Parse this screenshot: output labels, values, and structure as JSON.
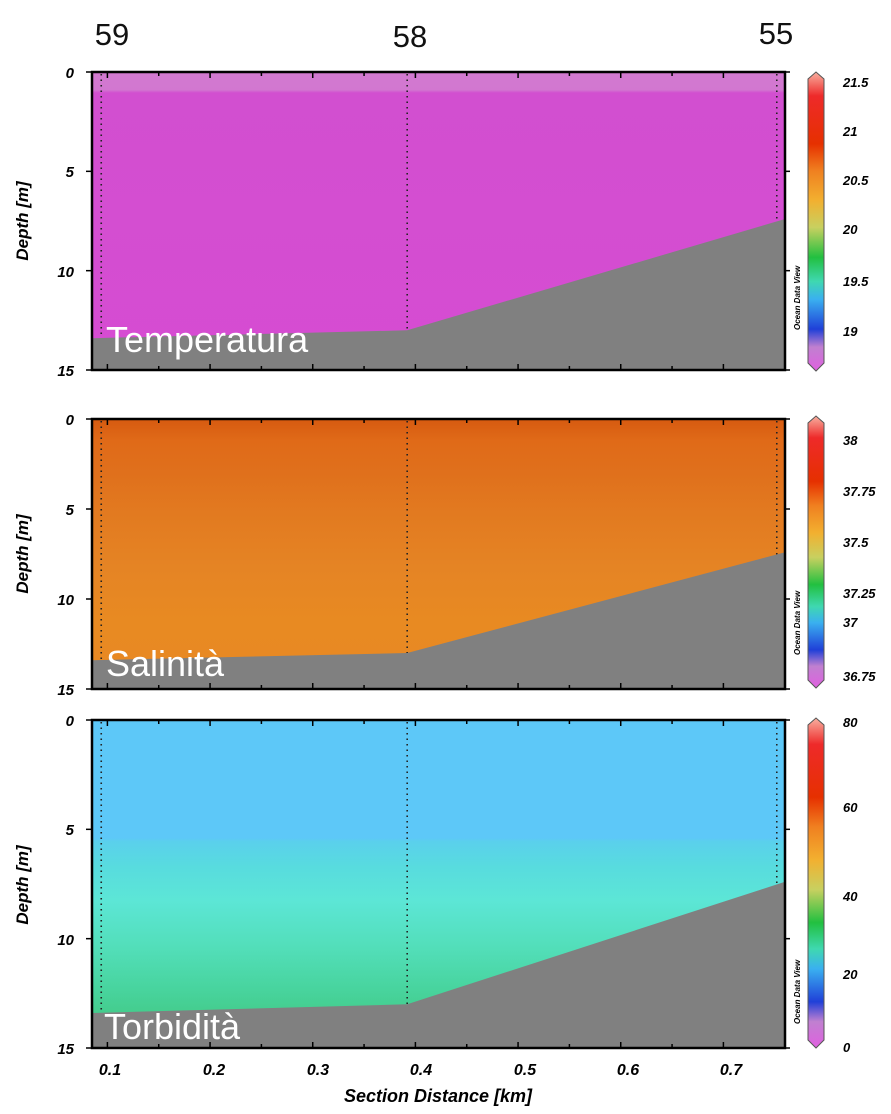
{
  "stations": [
    "59",
    "58",
    "55"
  ],
  "xlabel": "Section Distance [km]",
  "x_ticks": [
    "0.1",
    "0.2",
    "0.3",
    "0.4",
    "0.5",
    "0.6",
    "0.7"
  ],
  "watermark": "Ocean Data View",
  "chart_data": [
    {
      "type": "heatmap",
      "name": "Temperatura",
      "ylabel": "Depth [m]",
      "xlim": [
        0.085,
        0.76
      ],
      "ylim": [
        15,
        0
      ],
      "y_ticks": [
        "0",
        "5",
        "10",
        "15"
      ],
      "station_x": [
        0.094,
        0.392,
        0.752
      ],
      "bottom_profile": {
        "x": [
          0.085,
          0.392,
          0.76
        ],
        "depth": [
          13.4,
          13.0,
          7.4
        ]
      },
      "field": "nearly uniform ~18.8 (magenta); slightly lighter layer 0–1 m",
      "colorbar": {
        "ticks": [
          "21.5",
          "21",
          "20.5",
          "20",
          "19.5",
          "19"
        ],
        "range": [
          18.7,
          21.6
        ]
      }
    },
    {
      "type": "heatmap",
      "name": "Salinità",
      "ylabel": "Depth [m]",
      "xlim": [
        0.085,
        0.76
      ],
      "ylim": [
        15,
        0
      ],
      "y_ticks": [
        "0",
        "5",
        "10",
        "15"
      ],
      "station_x": [
        0.094,
        0.392,
        0.752
      ],
      "bottom_profile": {
        "x": [
          0.085,
          0.392,
          0.76
        ],
        "depth": [
          13.4,
          13.0,
          7.4
        ]
      },
      "field": "~37.8 orange, slightly higher (redder) near surface",
      "colorbar": {
        "ticks": [
          "38",
          "37.75",
          "37.5",
          "37.25",
          "37",
          "36.75"
        ],
        "range": [
          36.7,
          38.05
        ]
      }
    },
    {
      "type": "heatmap",
      "name": "Torbidità",
      "ylabel": "Depth [m]",
      "xlim": [
        0.085,
        0.76
      ],
      "ylim": [
        15,
        0
      ],
      "y_ticks": [
        "0",
        "5",
        "10",
        "15"
      ],
      "station_x": [
        0.094,
        0.392,
        0.752
      ],
      "bottom_profile": {
        "x": [
          0.085,
          0.392,
          0.76
        ],
        "depth": [
          13.4,
          13.0,
          7.4
        ]
      },
      "field": "~20 (light blue) above 5.5 m, increasing to ~30 (green) near bottom",
      "colorbar": {
        "ticks": [
          "80",
          "60",
          "40",
          "20",
          "0"
        ],
        "range": [
          0,
          82
        ]
      }
    }
  ]
}
